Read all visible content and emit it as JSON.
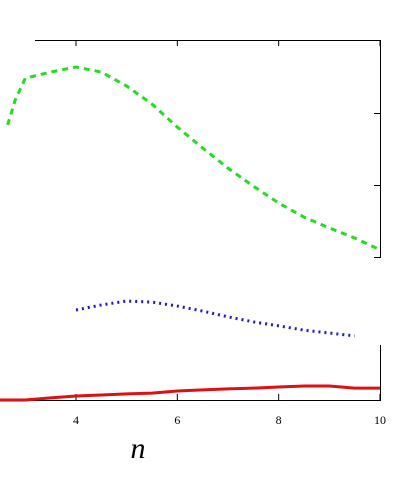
{
  "chart_data": {
    "type": "line",
    "x_label": "n",
    "xlim": [
      2.5,
      10
    ],
    "xticks": [
      4,
      6,
      8,
      10
    ],
    "ylim": [
      0,
      100
    ],
    "series": [
      {
        "color": "#22dd22",
        "dash": "6,5",
        "x": [
          2.65,
          2.8,
          3,
          3.5,
          4,
          4.5,
          5,
          5.5,
          6,
          6.5,
          7,
          7.5,
          8,
          8.5,
          9,
          9.5,
          10
        ],
        "values": [
          76.4,
          83.3,
          89.4,
          91.1,
          92.5,
          91.1,
          87.2,
          82.2,
          75.8,
          70,
          64.4,
          59.4,
          54.7,
          50.8,
          47.8,
          45,
          41.7
        ]
      },
      {
        "color": "#1a1acc",
        "dash": "2,4",
        "x": [
          4,
          4.5,
          5,
          5.5,
          6,
          6.5,
          7,
          7.5,
          8,
          8.5,
          9,
          9.5
        ],
        "values": [
          25,
          26.4,
          27.5,
          27.2,
          26.1,
          24.7,
          23.1,
          21.7,
          20.6,
          19.4,
          18.6,
          17.8
        ]
      },
      {
        "color": "#dd1111",
        "dash": "",
        "x": [
          2.5,
          3,
          3.5,
          4,
          4.5,
          5,
          5.5,
          6,
          6.5,
          7,
          7.5,
          8,
          8.5,
          9,
          9.5,
          10
        ],
        "values": [
          0,
          0,
          0.6,
          1.1,
          1.4,
          1.7,
          1.9,
          2.5,
          2.8,
          3.1,
          3.3,
          3.6,
          3.9,
          3.9,
          3.3,
          3.3
        ]
      }
    ]
  }
}
